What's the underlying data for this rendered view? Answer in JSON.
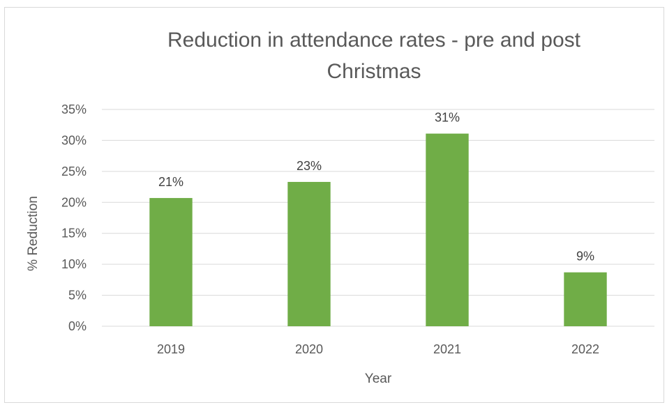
{
  "chart_data": {
    "type": "bar",
    "title_lines": [
      "Reduction in attendance rates - pre and post",
      "Christmas"
    ],
    "xlabel": "Year",
    "ylabel": "% Reduction",
    "categories": [
      "2019",
      "2020",
      "2021",
      "2022"
    ],
    "values": [
      20.7,
      23.3,
      31.1,
      8.7
    ],
    "data_labels": [
      "21%",
      "23%",
      "31%",
      "9%"
    ],
    "ylim": [
      0,
      35
    ],
    "y_ticks": [
      0,
      5,
      10,
      15,
      20,
      25,
      30,
      35
    ],
    "y_tick_labels": [
      "0%",
      "5%",
      "10%",
      "15%",
      "20%",
      "25%",
      "30%",
      "35%"
    ],
    "grid": true,
    "legend": "none",
    "colors": {
      "bar": "#70ad47",
      "grid": "#d9d9d9",
      "text": "#595959"
    }
  }
}
